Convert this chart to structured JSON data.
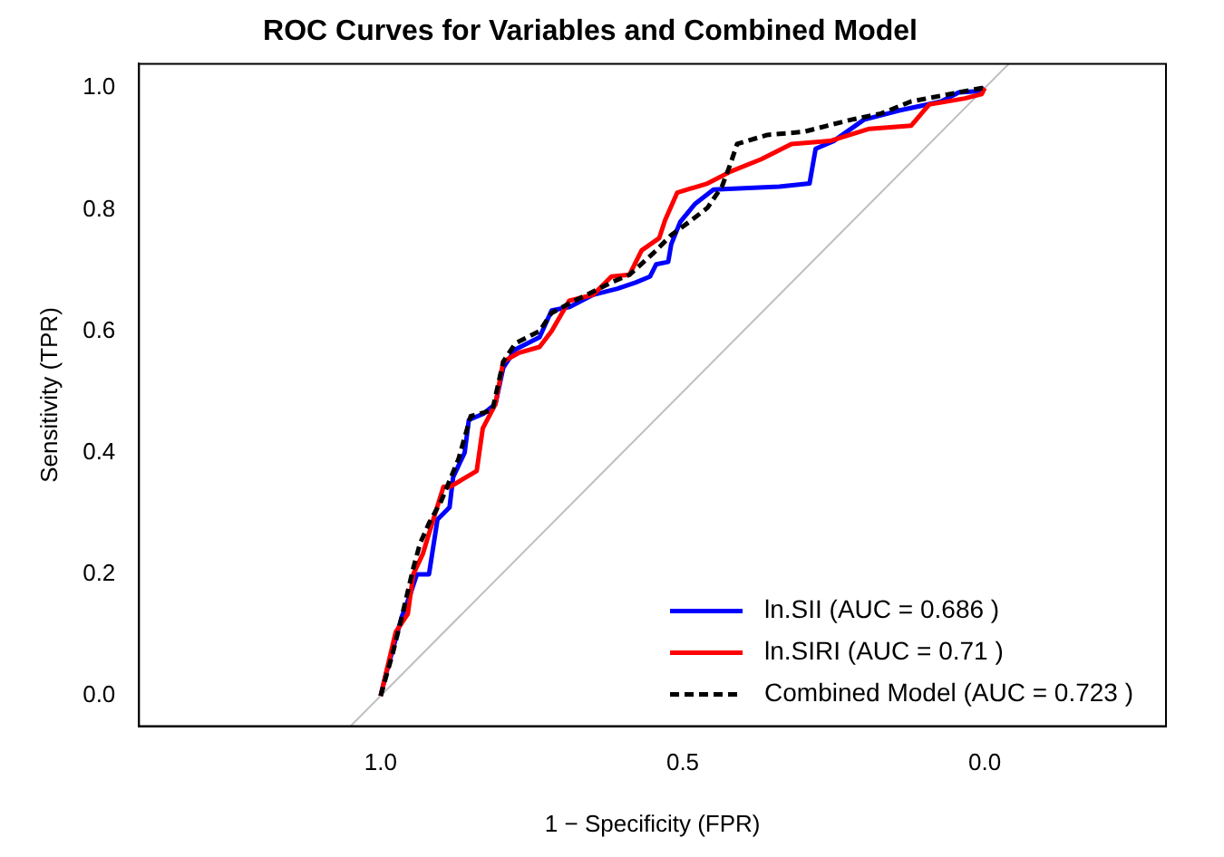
{
  "chart_data": {
    "type": "line",
    "title": "ROC Curves for Variables and Combined Model",
    "xlabel": "1 − Specificity (FPR)",
    "ylabel": "Sensitivity (TPR)",
    "xlim": [
      1.4,
      -0.3
    ],
    "ylim": [
      -0.05,
      1.04
    ],
    "xticks": [
      {
        "value": 1,
        "label": "1.0"
      },
      {
        "value": 0.5,
        "label": "0.5"
      },
      {
        "value": 0,
        "label": "0.0"
      }
    ],
    "yticks": [
      {
        "value": 0,
        "label": "0.0"
      },
      {
        "value": 0.2,
        "label": "0.2"
      },
      {
        "value": 0.4,
        "label": "0.4"
      },
      {
        "value": 0.6,
        "label": "0.6"
      },
      {
        "value": 0.8,
        "label": "0.8"
      },
      {
        "value": 1,
        "label": "1.0"
      }
    ],
    "grid": false,
    "legend": "bottom right",
    "marker": "none",
    "series": [
      {
        "name": "ln.SII (AUC = 0.686 )",
        "color": "#0000ff",
        "line_style": "solid",
        "x": [
          1,
          0.99,
          0.965,
          0.95,
          0.94,
          0.92,
          0.906,
          0.886,
          0.88,
          0.861,
          0.854,
          0.83,
          0.81,
          0.797,
          0.777,
          0.737,
          0.717,
          0.687,
          0.648,
          0.608,
          0.578,
          0.554,
          0.544,
          0.524,
          0.519,
          0.504,
          0.479,
          0.449,
          0.34,
          0.29,
          0.28,
          0.25,
          0.2,
          0.142,
          0.072,
          0.043,
          0.006,
          0
        ],
        "values": [
          0,
          0.04,
          0.13,
          0.17,
          0.2,
          0.2,
          0.29,
          0.31,
          0.36,
          0.4,
          0.454,
          0.464,
          0.48,
          0.54,
          0.57,
          0.59,
          0.634,
          0.64,
          0.66,
          0.67,
          0.68,
          0.69,
          0.71,
          0.714,
          0.743,
          0.78,
          0.81,
          0.833,
          0.838,
          0.843,
          0.9,
          0.913,
          0.948,
          0.963,
          0.978,
          0.993,
          0.995,
          1
        ]
      },
      {
        "name": "ln.SIRI (AUC = 0.71 )",
        "color": "#ff0000",
        "line_style": "solid",
        "x": [
          1,
          0.975,
          0.955,
          0.946,
          0.93,
          0.916,
          0.896,
          0.885,
          0.841,
          0.831,
          0.81,
          0.797,
          0.772,
          0.737,
          0.717,
          0.688,
          0.648,
          0.618,
          0.588,
          0.568,
          0.539,
          0.529,
          0.509,
          0.459,
          0.42,
          0.37,
          0.32,
          0.256,
          0.191,
          0.122,
          0.092,
          0.033,
          0.005,
          0
        ],
        "values": [
          0,
          0.105,
          0.135,
          0.2,
          0.234,
          0.28,
          0.344,
          0.344,
          0.37,
          0.44,
          0.48,
          0.55,
          0.564,
          0.574,
          0.6,
          0.65,
          0.66,
          0.69,
          0.693,
          0.733,
          0.753,
          0.783,
          0.828,
          0.843,
          0.863,
          0.883,
          0.908,
          0.913,
          0.933,
          0.938,
          0.973,
          0.983,
          0.99,
          1
        ]
      },
      {
        "name": "Combined Model (AUC = 0.723 )",
        "color": "#000000",
        "line_style": "dashed",
        "x": [
          1,
          0.98,
          0.965,
          0.946,
          0.935,
          0.92,
          0.9,
          0.871,
          0.851,
          0.815,
          0.797,
          0.777,
          0.737,
          0.717,
          0.687,
          0.618,
          0.588,
          0.549,
          0.519,
          0.489,
          0.459,
          0.435,
          0.42,
          0.41,
          0.36,
          0.3,
          0.261,
          0.221,
          0.172,
          0.122,
          0.043,
          0.005,
          0
        ],
        "values": [
          0,
          0.07,
          0.13,
          0.21,
          0.25,
          0.284,
          0.32,
          0.39,
          0.46,
          0.47,
          0.55,
          0.58,
          0.6,
          0.63,
          0.646,
          0.68,
          0.693,
          0.728,
          0.758,
          0.78,
          0.803,
          0.838,
          0.878,
          0.908,
          0.923,
          0.928,
          0.938,
          0.948,
          0.958,
          0.978,
          0.993,
          1,
          1
        ]
      },
      {
        "color": "#bebebe",
        "line_style": "solid",
        "x": [
          1.05,
          -0.04
        ],
        "values": [
          -0.05,
          1.04
        ]
      }
    ]
  }
}
